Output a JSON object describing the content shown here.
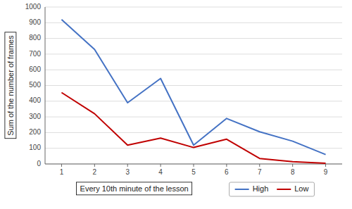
{
  "chart_data": {
    "type": "line",
    "x": [
      1,
      2,
      3,
      4,
      5,
      6,
      7,
      8,
      9
    ],
    "series": [
      {
        "name": "High",
        "color": "#4472c4",
        "values": [
          920,
          730,
          390,
          545,
          120,
          290,
          205,
          145,
          60
        ]
      },
      {
        "name": "Low",
        "color": "#c00000",
        "values": [
          455,
          320,
          120,
          165,
          105,
          158,
          35,
          15,
          5
        ]
      }
    ],
    "xlabel": "Every 10th minute of the lesson",
    "ylabel": "Sum of the number of frames",
    "xlim": [
      0.5,
      9.5
    ],
    "ylim": [
      0,
      1000
    ],
    "xticks": [
      1,
      2,
      3,
      4,
      5,
      6,
      7,
      8,
      9
    ],
    "yticks": [
      0,
      100,
      200,
      300,
      400,
      500,
      600,
      700,
      800,
      900,
      1000
    ],
    "grid": true,
    "legend": "bottom"
  }
}
